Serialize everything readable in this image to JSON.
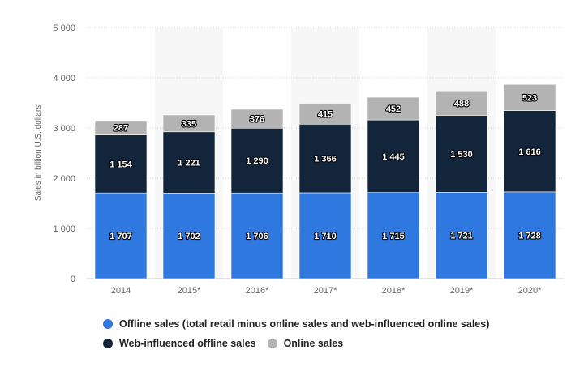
{
  "chart_data": {
    "type": "bar",
    "stacked": true,
    "categories": [
      "2014",
      "2015*",
      "2016*",
      "2017*",
      "2018*",
      "2019*",
      "2020*"
    ],
    "series": [
      {
        "name": "Offline sales (total retail minus online sales and web-influenced online sales)",
        "color": "#2f78e0",
        "values": [
          1707,
          1702,
          1706,
          1710,
          1715,
          1721,
          1728
        ],
        "labels": [
          "1 707",
          "1 702",
          "1 706",
          "1 710",
          "1 715",
          "1 721",
          "1 728"
        ]
      },
      {
        "name": "Web-influenced offline sales",
        "color": "#12253a",
        "values": [
          1154,
          1221,
          1290,
          1366,
          1445,
          1530,
          1616
        ],
        "labels": [
          "1 154",
          "1 221",
          "1 290",
          "1 366",
          "1 445",
          "1 530",
          "1 616"
        ]
      },
      {
        "name": "Online sales",
        "color": "#b3b3b3",
        "values": [
          287,
          335,
          376,
          415,
          452,
          488,
          523
        ],
        "labels": [
          "287",
          "335",
          "376",
          "415",
          "452",
          "488",
          "523"
        ]
      }
    ],
    "ylabel": "Sales in billion U.S. dollars",
    "ylim": [
      0,
      5000
    ],
    "yticks": [
      0,
      1000,
      2000,
      3000,
      4000,
      5000
    ],
    "ytick_labels": [
      "0",
      "1 000",
      "2 000",
      "3 000",
      "4 000",
      "5 000"
    ],
    "grid": true,
    "legend_position": "bottom"
  }
}
